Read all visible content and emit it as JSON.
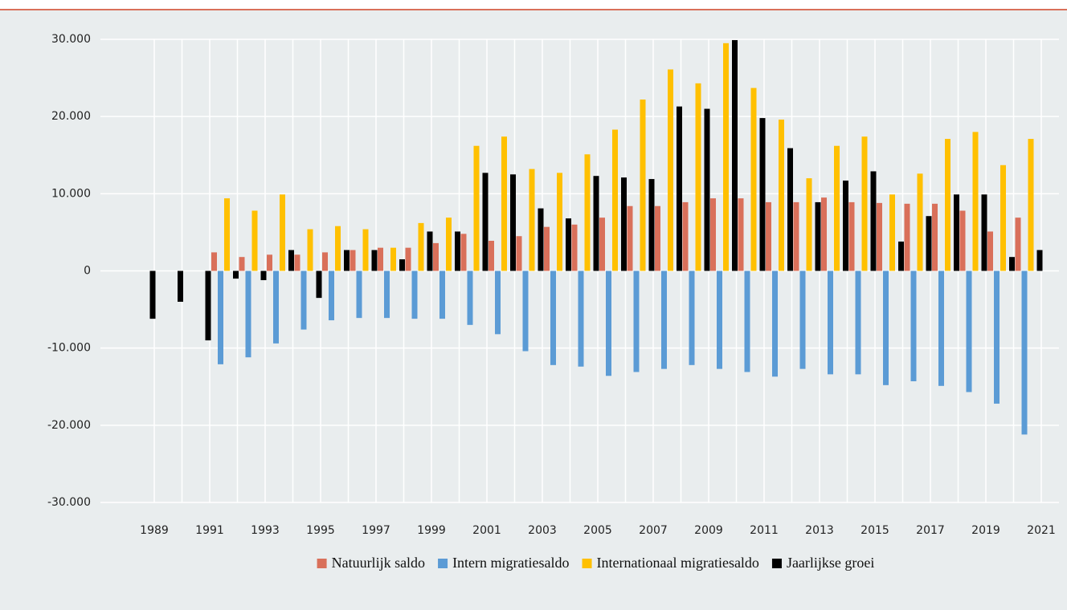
{
  "chart_data": {
    "type": "bar",
    "categories": [
      "1989",
      null,
      "1991",
      null,
      "1993",
      null,
      "1995",
      null,
      "1997",
      null,
      "1999",
      null,
      "2001",
      null,
      "2003",
      null,
      "2005",
      null,
      "2007",
      null,
      "2009",
      null,
      "2011",
      null,
      "2013",
      null,
      "2015",
      null,
      "2017",
      null,
      "2019",
      null,
      "2021"
    ],
    "series": [
      {
        "name": "Natuurlijk saldo",
        "color": "#d9705a",
        "values": [
          null,
          null,
          null,
          2400,
          1800,
          2100,
          2100,
          2400,
          2700,
          3000,
          3000,
          3600,
          4800,
          3900,
          4500,
          5700,
          6000,
          6900,
          8400,
          8400,
          8900,
          9400,
          9400,
          8900,
          8900,
          9500,
          8900,
          8800,
          8700,
          8700,
          7800,
          5100,
          6900
        ]
      },
      {
        "name": "Intern migratiesaldo",
        "color": "#5b9bd5",
        "values": [
          null,
          null,
          null,
          -12100,
          -11200,
          -9400,
          -7600,
          -6400,
          -6100,
          -6100,
          -6200,
          -6200,
          -7000,
          -8200,
          -10400,
          -12200,
          -12400,
          -13600,
          -13100,
          -12700,
          -12200,
          -12700,
          -13100,
          -13700,
          -12700,
          -13400,
          -13400,
          -14800,
          -14300,
          -14900,
          -15700,
          -17200,
          -21200
        ]
      },
      {
        "name": "Internationaal migratiesaldo",
        "color": "#ffc000",
        "values": [
          null,
          null,
          null,
          9400,
          7800,
          9900,
          5400,
          5800,
          5400,
          3000,
          6200,
          6900,
          16200,
          17400,
          13200,
          12700,
          15100,
          18300,
          22200,
          26100,
          24300,
          29500,
          23700,
          19600,
          12000,
          16200,
          17400,
          9900,
          12600,
          17100,
          18000,
          13700,
          17100
        ]
      },
      {
        "name": "Jaarlijkse groei",
        "color": "#000000",
        "values": [
          -6200,
          -4000,
          -9000,
          -1000,
          -1200,
          2700,
          -3500,
          2700,
          2700,
          1500,
          5100,
          5100,
          12700,
          12500,
          8100,
          6800,
          12300,
          12100,
          11900,
          21300,
          21000,
          29900,
          19800,
          15900,
          8900,
          11700,
          12900,
          3800,
          7100,
          9900,
          9900,
          1800,
          2700
        ]
      }
    ],
    "ylim": [
      -30000,
      30000
    ],
    "yticks": [
      {
        "value": -30000,
        "label": "-30.000"
      },
      {
        "value": -20000,
        "label": "-20.000"
      },
      {
        "value": -10000,
        "label": "-10.000"
      },
      0,
      {
        "value": 10000,
        "label": "10.000"
      },
      {
        "value": 20000,
        "label": "20.000"
      },
      {
        "value": 30000,
        "label": "30.000"
      }
    ],
    "grid": true,
    "legend": "bottom"
  }
}
